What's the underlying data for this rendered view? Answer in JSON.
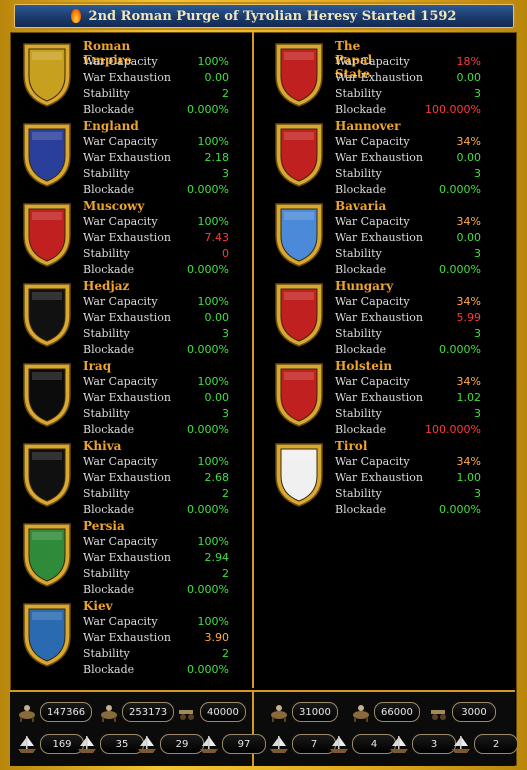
{
  "title": "2nd Roman Purge of Tyrolian Heresy Started 1592",
  "labels": {
    "capacity": "War Capacity",
    "exhaustion": "War Exhaustion",
    "stability": "Stability",
    "blockade": "Blockade"
  },
  "colors": {
    "good": "#3fe03f",
    "bad": "#ff3a3a",
    "warn": "#ffb040",
    "title": "#f0a428"
  },
  "left": [
    {
      "name": "Roman Empire",
      "capacity": "100%",
      "exhaustion": "0.00",
      "stability": "2",
      "blockade": "0.000%",
      "icon": "eagle-shield-icon",
      "shieldColor": "#c8a020",
      "capColor": "good",
      "exhColor": "good",
      "stabColor": "good",
      "blkColor": "good"
    },
    {
      "name": "England",
      "capacity": "100%",
      "exhaustion": "2.18",
      "stability": "3",
      "blockade": "0.000%",
      "icon": "quartered-lions-shield-icon",
      "shieldColor": "#2a3f9a",
      "capColor": "good",
      "exhColor": "good",
      "stabColor": "good",
      "blkColor": "good"
    },
    {
      "name": "Muscowy",
      "capacity": "100%",
      "exhaustion": "7.43",
      "stability": "0",
      "blockade": "0.000%",
      "icon": "st-george-shield-icon",
      "shieldColor": "#c02020",
      "capColor": "good",
      "exhColor": "bad",
      "stabColor": "bad",
      "blkColor": "good"
    },
    {
      "name": "Hedjaz",
      "capacity": "100%",
      "exhaustion": "0.00",
      "stability": "3",
      "blockade": "0.000%",
      "icon": "calligraphy-shield-icon",
      "shieldColor": "#111111",
      "capColor": "good",
      "exhColor": "good",
      "stabColor": "good",
      "blkColor": "good"
    },
    {
      "name": "Iraq",
      "capacity": "100%",
      "exhaustion": "0.00",
      "stability": "3",
      "blockade": "0.000%",
      "icon": "black-banner-shield-icon",
      "shieldColor": "#0c0c0c",
      "capColor": "good",
      "exhColor": "good",
      "stabColor": "good",
      "blkColor": "good"
    },
    {
      "name": "Khiva",
      "capacity": "100%",
      "exhaustion": "2.68",
      "stability": "2",
      "blockade": "0.000%",
      "icon": "crescent-shield-icon",
      "shieldColor": "#101010",
      "capColor": "good",
      "exhColor": "good",
      "stabColor": "good",
      "blkColor": "good"
    },
    {
      "name": "Persia",
      "capacity": "100%",
      "exhaustion": "2.94",
      "stability": "2",
      "blockade": "0.000%",
      "icon": "lion-sun-shield-icon",
      "shieldColor": "#2f8a3a",
      "capColor": "good",
      "exhColor": "good",
      "stabColor": "good",
      "blkColor": "good"
    },
    {
      "name": "Kiev",
      "capacity": "100%",
      "exhaustion": "3.90",
      "stability": "2",
      "blockade": "0.000%",
      "icon": "saint-shield-icon",
      "shieldColor": "#2a6ab0",
      "capColor": "good",
      "exhColor": "warn",
      "stabColor": "good",
      "blkColor": "good"
    }
  ],
  "right": [
    {
      "name": "The Papal State",
      "capacity": "18%",
      "exhaustion": "0.00",
      "stability": "3",
      "blockade": "100.000%",
      "icon": "crossed-keys-shield-icon",
      "shieldColor": "#c02020",
      "capColor": "bad",
      "exhColor": "good",
      "stabColor": "good",
      "blkColor": "bad"
    },
    {
      "name": "Hannover",
      "capacity": "34%",
      "exhaustion": "0.00",
      "stability": "3",
      "blockade": "0.000%",
      "icon": "white-horse-shield-icon",
      "shieldColor": "#c02020",
      "capColor": "warn",
      "exhColor": "good",
      "stabColor": "good",
      "blkColor": "good"
    },
    {
      "name": "Bavaria",
      "capacity": "34%",
      "exhaustion": "0.00",
      "stability": "3",
      "blockade": "0.000%",
      "icon": "lozenge-shield-icon",
      "shieldColor": "#4a8ad8",
      "capColor": "warn",
      "exhColor": "good",
      "stabColor": "good",
      "blkColor": "good"
    },
    {
      "name": "Hungary",
      "capacity": "34%",
      "exhaustion": "5.99",
      "stability": "3",
      "blockade": "0.000%",
      "icon": "double-cross-shield-icon",
      "shieldColor": "#c02020",
      "capColor": "warn",
      "exhColor": "bad",
      "stabColor": "good",
      "blkColor": "good"
    },
    {
      "name": "Holstein",
      "capacity": "34%",
      "exhaustion": "1.02",
      "stability": "3",
      "blockade": "100.000%",
      "icon": "nettle-leaf-shield-icon",
      "shieldColor": "#c02020",
      "capColor": "warn",
      "exhColor": "good",
      "stabColor": "good",
      "blkColor": "bad"
    },
    {
      "name": "Tirol",
      "capacity": "34%",
      "exhaustion": "1.00",
      "stability": "3",
      "blockade": "0.000%",
      "icon": "red-eagle-shield-icon",
      "shieldColor": "#f0f0f0",
      "capColor": "warn",
      "exhColor": "good",
      "stabColor": "good",
      "blkColor": "good"
    }
  ],
  "forces": {
    "left": {
      "infantry": "147366",
      "cavalry": "253173",
      "artillery": "40000",
      "ships": [
        {
          "icon": "galley-icon",
          "count": "169"
        },
        {
          "icon": "transport-ship-icon",
          "count": "35"
        },
        {
          "icon": "light-ship-icon",
          "count": "29"
        },
        {
          "icon": "warship-icon",
          "count": "97"
        }
      ]
    },
    "right": {
      "infantry": "31000",
      "cavalry": "66000",
      "artillery": "3000",
      "ships": [
        {
          "icon": "galley-icon",
          "count": "7"
        },
        {
          "icon": "transport-ship-icon",
          "count": "4"
        },
        {
          "icon": "light-ship-icon",
          "count": "3"
        },
        {
          "icon": "warship-icon",
          "count": "2"
        }
      ]
    }
  }
}
